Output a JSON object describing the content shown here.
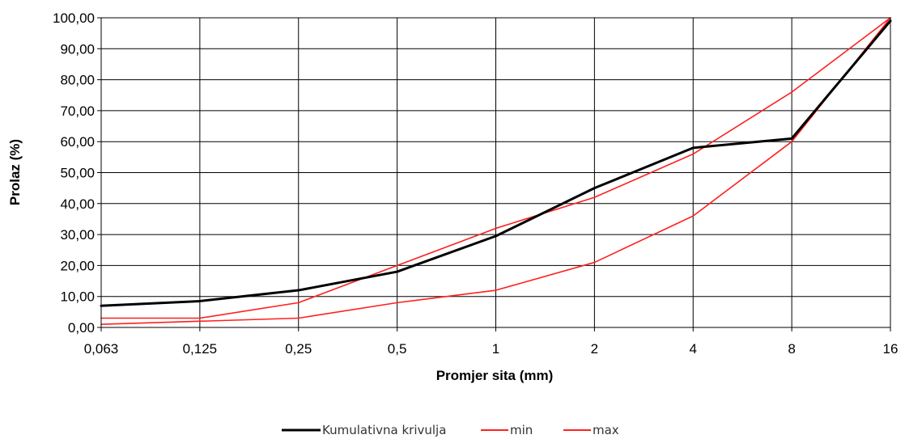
{
  "chart_data": {
    "type": "line",
    "xlabel": "Promjer sita (mm)",
    "ylabel": "Prolaz (%)",
    "categories": [
      "0,063",
      "0,125",
      "0,25",
      "0,5",
      "1",
      "2",
      "4",
      "8",
      "16"
    ],
    "yticks": [
      "0,00",
      "10,00",
      "20,00",
      "30,00",
      "40,00",
      "50,00",
      "60,00",
      "70,00",
      "80,00",
      "90,00",
      "100,00"
    ],
    "ylim": [
      0,
      100
    ],
    "grid": true,
    "legend_position": "bottom",
    "series": [
      {
        "name": "Kumulativna krivulja",
        "color": "#000000",
        "values": [
          7.0,
          8.5,
          12.0,
          18.0,
          29.5,
          45.0,
          58.0,
          61.0,
          99.0
        ]
      },
      {
        "name": "min",
        "color": "#ff2020",
        "values": [
          1.0,
          2.0,
          3.0,
          8.0,
          12.0,
          21.0,
          36.0,
          60.0,
          100.0
        ]
      },
      {
        "name": "max",
        "color": "#ff2020",
        "values": [
          3.0,
          3.0,
          8.0,
          20.0,
          32.0,
          42.0,
          56.0,
          76.0,
          100.0
        ]
      }
    ]
  }
}
